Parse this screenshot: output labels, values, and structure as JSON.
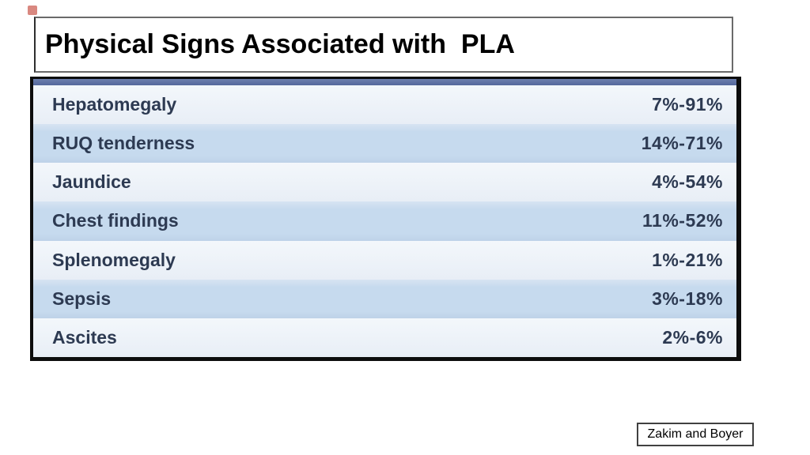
{
  "slide": {
    "title": "Physical Signs Associated with  PLA",
    "citation": "Zakim and Boyer"
  },
  "table": {
    "rows": [
      {
        "sign": "Hepatomegaly",
        "range": "7%-91%"
      },
      {
        "sign": "RUQ tenderness",
        "range": "14%-71%"
      },
      {
        "sign": "Jaundice",
        "range": "4%-54%"
      },
      {
        "sign": "Chest findings",
        "range": "11%-52%"
      },
      {
        "sign": "Splenomegaly",
        "range": "1%-21%"
      },
      {
        "sign": "Sepsis",
        "range": "3%-18%"
      },
      {
        "sign": "Ascites",
        "range": "2%-6%"
      }
    ]
  },
  "colors": {
    "row_light": "#edf3f9",
    "row_blue": "#c6daee",
    "header_strip": "#54679c",
    "table_border": "#0d0d0d",
    "row_text": "#2d3a52",
    "accent_mark": "#c0392b"
  }
}
